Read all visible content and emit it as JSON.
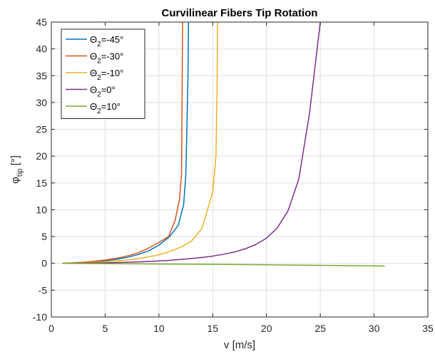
{
  "chart_data": {
    "type": "line",
    "title": "Curvilinear Fibers Tip Rotation",
    "xlabel": "v [m/s]",
    "ylabel": {
      "base": "φ",
      "sub": "tip",
      "unit": " [°]"
    },
    "xlim": [
      0,
      35
    ],
    "ylim": [
      -10,
      45
    ],
    "xticks": [
      0,
      5,
      10,
      15,
      20,
      25,
      30,
      35
    ],
    "yticks": [
      -10,
      -5,
      0,
      5,
      10,
      15,
      20,
      25,
      30,
      35,
      40,
      45
    ],
    "grid": true,
    "legend_position": "top-left",
    "series": [
      {
        "name": "Θ2=-45°",
        "legend": {
          "prefix": "Θ",
          "sub": "2",
          "suffix": "=-45°"
        },
        "color": "#0072BD",
        "x": [
          1,
          2,
          3,
          4,
          5,
          6,
          7,
          8,
          9,
          10,
          11,
          11.8,
          12.3,
          12.5,
          12.6,
          12.7,
          12.75
        ],
        "y": [
          0,
          0.07,
          0.18,
          0.32,
          0.5,
          0.75,
          1.1,
          1.6,
          2.3,
          3.4,
          5.0,
          7.1,
          11,
          16.5,
          25,
          35,
          45
        ]
      },
      {
        "name": "Θ2=-30°",
        "legend": {
          "prefix": "Θ",
          "sub": "2",
          "suffix": "=-30°"
        },
        "color": "#D95319",
        "x": [
          1,
          2,
          3,
          4,
          5,
          6,
          7,
          8,
          9,
          10,
          10.9,
          11.5,
          11.9,
          12.1,
          12.15,
          12.2
        ],
        "y": [
          0,
          0.09,
          0.22,
          0.4,
          0.62,
          0.92,
          1.35,
          1.9,
          2.8,
          3.9,
          5.0,
          8,
          11.8,
          16.5,
          30,
          45
        ]
      },
      {
        "name": "Θ2=-10°",
        "legend": {
          "prefix": "Θ",
          "sub": "2",
          "suffix": "=-10°"
        },
        "color": "#EDB120",
        "x": [
          1,
          2,
          3,
          4,
          5,
          6,
          7,
          8,
          9,
          10,
          11,
          12,
          13,
          14,
          15,
          15.3,
          15.4,
          15.45
        ],
        "y": [
          0,
          0.05,
          0.12,
          0.2,
          0.3,
          0.45,
          0.6,
          0.85,
          1.2,
          1.6,
          2.2,
          3.0,
          4.1,
          6.5,
          13.3,
          20,
          32,
          45
        ]
      },
      {
        "name": "Θ2=0°",
        "legend": {
          "prefix": "Θ",
          "sub": "2",
          "suffix": "=0°"
        },
        "color": "#7E2F8E",
        "x": [
          1,
          2,
          3,
          4,
          5,
          6,
          7,
          8,
          9,
          10,
          11,
          12,
          13,
          14,
          15,
          16,
          17,
          18,
          19,
          20,
          21,
          22,
          23,
          24,
          25
        ],
        "y": [
          0,
          0.02,
          0.04,
          0.07,
          0.1,
          0.14,
          0.2,
          0.27,
          0.35,
          0.45,
          0.57,
          0.72,
          0.9,
          1.1,
          1.35,
          1.7,
          2.1,
          2.7,
          3.5,
          4.7,
          6.6,
          9.8,
          15.7,
          28,
          45
        ]
      },
      {
        "name": "Θ2=10°",
        "legend": {
          "prefix": "Θ",
          "sub": "2",
          "suffix": "=10°"
        },
        "color": "#77AC30",
        "x": [
          1,
          5,
          10,
          15,
          20,
          25,
          31
        ],
        "y": [
          0,
          -0.05,
          -0.12,
          -0.18,
          -0.27,
          -0.37,
          -0.5
        ]
      }
    ]
  }
}
